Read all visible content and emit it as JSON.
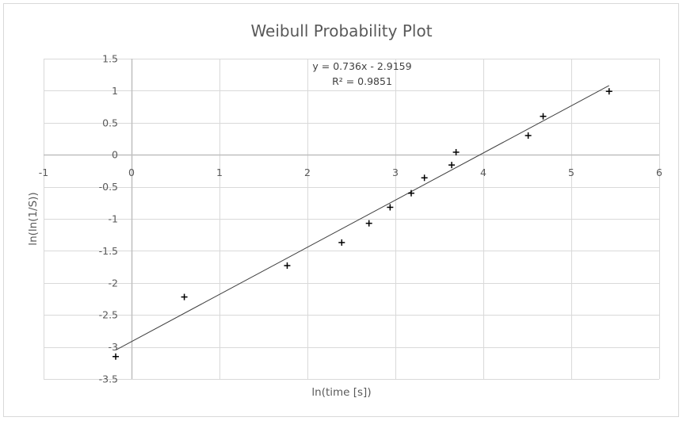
{
  "chart_data": {
    "type": "scatter",
    "title": "Weibull Probability Plot",
    "xlabel": "ln(time [s])",
    "ylabel": "ln(ln(1/S))",
    "xlim": [
      -1,
      6
    ],
    "ylim": [
      -3.5,
      1.5
    ],
    "x_ticks": [
      -1,
      0,
      1,
      2,
      3,
      4,
      5,
      6
    ],
    "y_ticks": [
      1.5,
      1,
      0.5,
      0,
      -0.5,
      -1,
      -1.5,
      -2,
      -2.5,
      -3,
      -3.5
    ],
    "x_tick_labels": [
      "-1",
      "0",
      "1",
      "2",
      "3",
      "4",
      "5",
      "6"
    ],
    "y_tick_labels": [
      "1.5",
      "1",
      "0.5",
      "0",
      "-0.5",
      "-1",
      "-1.5",
      "-2",
      "-2.5",
      "-3",
      "-3.5"
    ],
    "grid": true,
    "legend": null,
    "series": [
      {
        "name": "data",
        "marker": "plus",
        "color": "#000000",
        "x": [
          -0.18,
          0.6,
          1.77,
          2.39,
          2.7,
          2.94,
          3.18,
          3.33,
          3.64,
          3.69,
          4.51,
          4.68,
          5.43
        ],
        "y": [
          -3.15,
          -2.22,
          -1.73,
          -1.37,
          -1.07,
          -0.82,
          -0.6,
          -0.36,
          -0.16,
          0.04,
          0.3,
          0.6,
          0.99
        ]
      }
    ],
    "trendline": {
      "type": "linear",
      "slope": 0.736,
      "intercept": -2.9159,
      "x_range": [
        -0.18,
        5.43
      ],
      "equation_label": "y = 0.736x - 2.9159",
      "r2_label": "R² = 0.9851",
      "color": "#404040"
    }
  },
  "style": {
    "grid_color": "#d9d9d9",
    "axis_color": "#bfbfbf",
    "text_color": "#595959"
  }
}
